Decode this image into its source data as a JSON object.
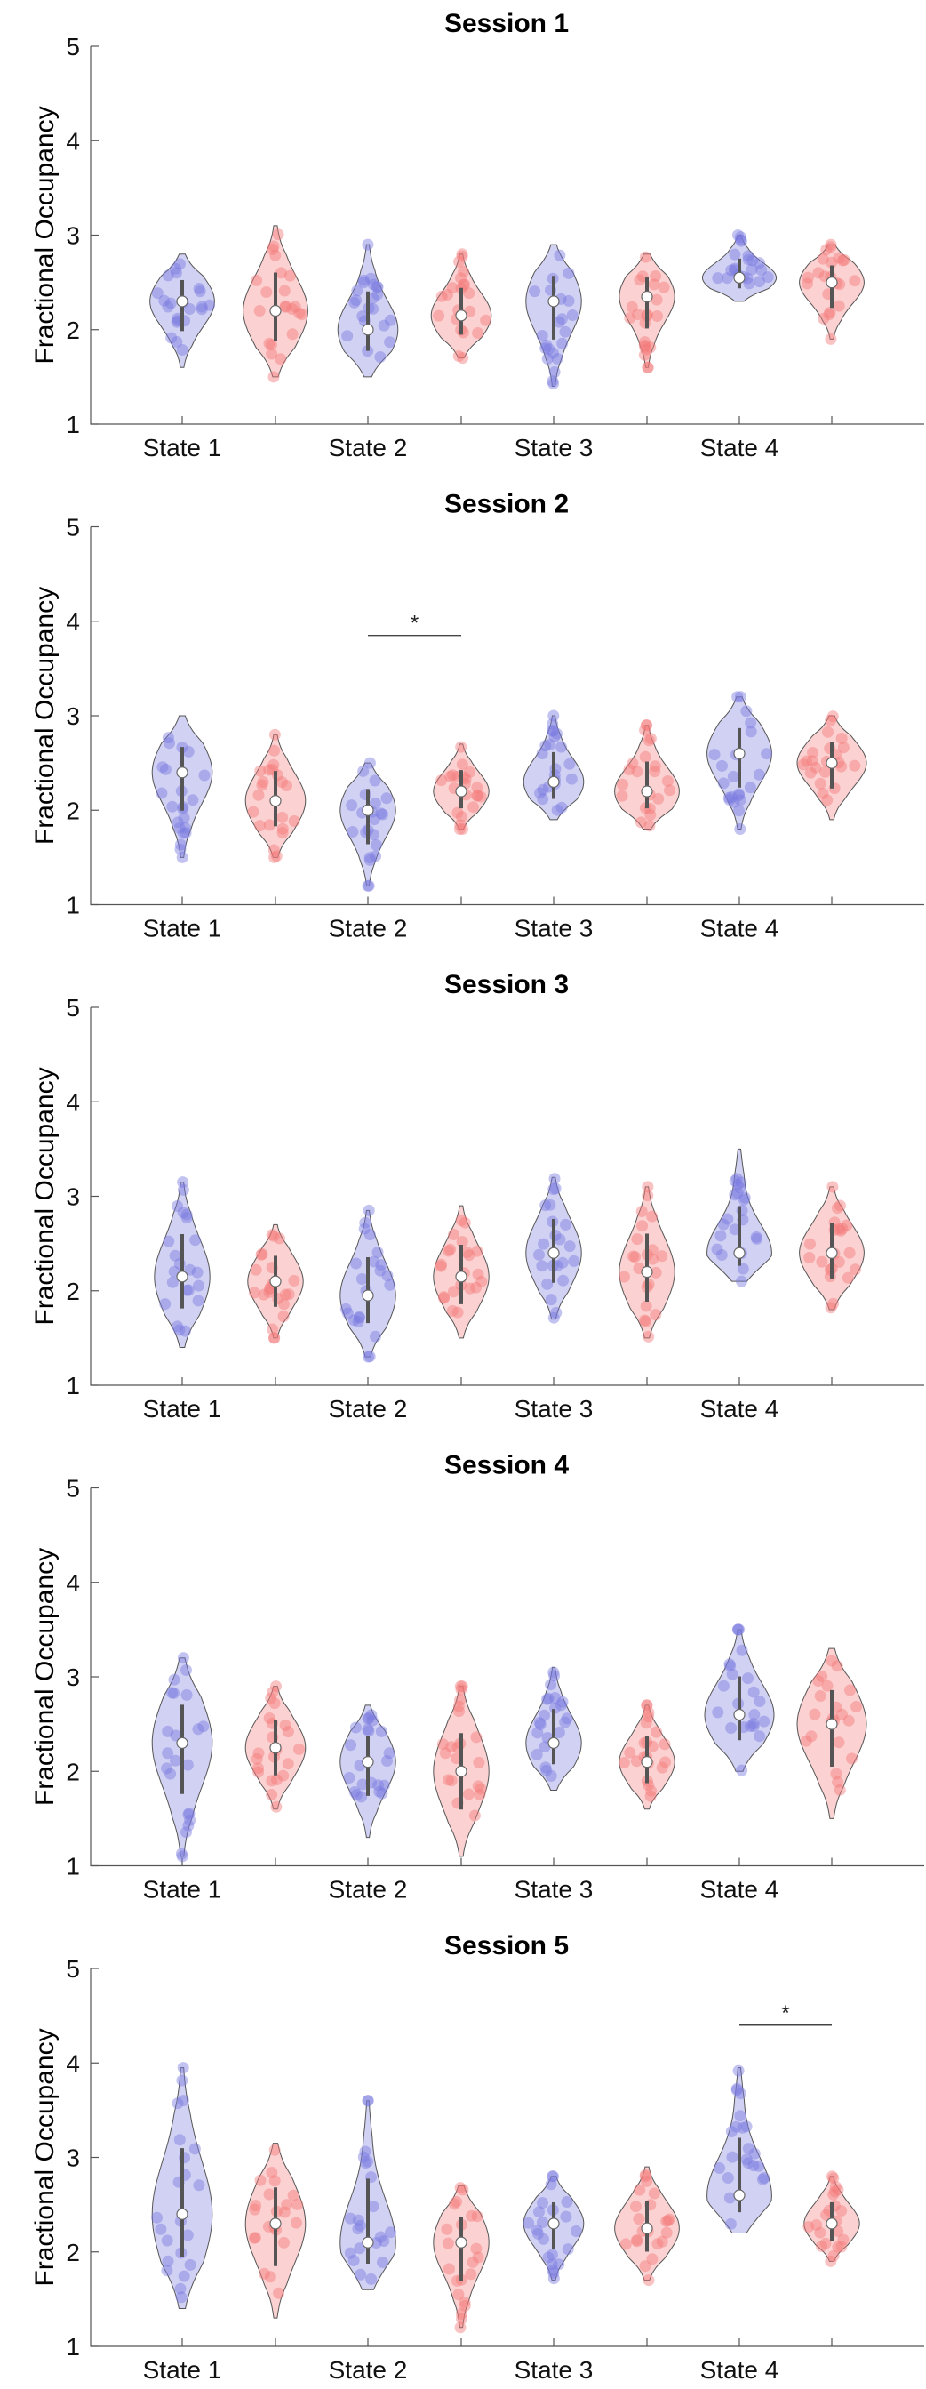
{
  "figure": {
    "ylabel": "Fractional Occupancy",
    "xtick_labels": [
      "State 1",
      "State 2",
      "State 3",
      "State 4"
    ],
    "ytick_labels": [
      "1",
      "2",
      "3",
      "4",
      "5"
    ],
    "colors": {
      "blue": "#7b7be0",
      "red": "#f47b7b",
      "edge": "#555555"
    },
    "significance_label": "*"
  },
  "chart_data": [
    {
      "type": "violin",
      "title": "Session 1",
      "ylabel": "Fractional Occupancy",
      "ylim": [
        1,
        5
      ],
      "categories": [
        "State 1",
        "State 2",
        "State 3",
        "State 4"
      ],
      "series": [
        {
          "name": "group-blue",
          "medians": [
            2.3,
            2.0,
            2.3,
            2.55
          ],
          "ranges": [
            [
              1.6,
              2.8
            ],
            [
              1.5,
              2.9
            ],
            [
              1.4,
              2.9
            ],
            [
              2.3,
              3.0
            ]
          ],
          "widths": [
            0.7,
            0.65,
            0.6,
            0.8
          ]
        },
        {
          "name": "group-red",
          "medians": [
            2.2,
            2.15,
            2.35,
            2.5
          ],
          "ranges": [
            [
              1.5,
              3.1
            ],
            [
              1.7,
              2.8
            ],
            [
              1.6,
              2.8
            ],
            [
              1.9,
              2.9
            ]
          ],
          "widths": [
            0.7,
            0.65,
            0.6,
            0.7
          ]
        }
      ],
      "significance": []
    },
    {
      "type": "violin",
      "title": "Session 2",
      "ylabel": "Fractional Occupancy",
      "ylim": [
        1,
        5
      ],
      "categories": [
        "State 1",
        "State 2",
        "State 3",
        "State 4"
      ],
      "series": [
        {
          "name": "group-blue",
          "medians": [
            2.4,
            2.0,
            2.3,
            2.6
          ],
          "ranges": [
            [
              1.5,
              3.0
            ],
            [
              1.2,
              2.5
            ],
            [
              1.9,
              3.0
            ],
            [
              1.8,
              3.2
            ]
          ],
          "widths": [
            0.65,
            0.6,
            0.65,
            0.7
          ]
        },
        {
          "name": "group-red",
          "medians": [
            2.1,
            2.2,
            2.2,
            2.5
          ],
          "ranges": [
            [
              1.5,
              2.8
            ],
            [
              1.8,
              2.7
            ],
            [
              1.8,
              2.9
            ],
            [
              1.9,
              3.0
            ]
          ],
          "widths": [
            0.65,
            0.6,
            0.7,
            0.75
          ]
        }
      ],
      "significance": [
        {
          "from": "State 2 blue",
          "to": "State 2 red",
          "y": 3.85,
          "label": "*"
        }
      ]
    },
    {
      "type": "violin",
      "title": "Session 3",
      "ylabel": "Fractional Occupancy",
      "ylim": [
        1,
        5
      ],
      "categories": [
        "State 1",
        "State 2",
        "State 3",
        "State 4"
      ],
      "series": [
        {
          "name": "group-blue",
          "medians": [
            2.15,
            1.95,
            2.4,
            2.4
          ],
          "ranges": [
            [
              1.4,
              3.15
            ],
            [
              1.3,
              2.85
            ],
            [
              1.7,
              3.2
            ],
            [
              2.1,
              3.5
            ]
          ],
          "widths": [
            0.6,
            0.6,
            0.6,
            0.7
          ]
        },
        {
          "name": "group-red",
          "medians": [
            2.1,
            2.15,
            2.2,
            2.4
          ],
          "ranges": [
            [
              1.5,
              2.7
            ],
            [
              1.5,
              2.9
            ],
            [
              1.5,
              3.1
            ],
            [
              1.8,
              3.1
            ]
          ],
          "widths": [
            0.6,
            0.6,
            0.6,
            0.7
          ]
        }
      ],
      "significance": []
    },
    {
      "type": "violin",
      "title": "Session 4",
      "ylabel": "Fractional Occupancy",
      "ylim": [
        1,
        5
      ],
      "categories": [
        "State 1",
        "State 2",
        "State 3",
        "State 4"
      ],
      "series": [
        {
          "name": "group-blue",
          "medians": [
            2.3,
            2.1,
            2.3,
            2.6
          ],
          "ranges": [
            [
              1.1,
              3.2
            ],
            [
              1.3,
              2.7
            ],
            [
              1.8,
              3.1
            ],
            [
              2.0,
              3.5
            ]
          ],
          "widths": [
            0.65,
            0.6,
            0.6,
            0.75
          ]
        },
        {
          "name": "group-red",
          "medians": [
            2.25,
            2.0,
            2.1,
            2.5
          ],
          "ranges": [
            [
              1.6,
              2.9
            ],
            [
              1.1,
              2.9
            ],
            [
              1.6,
              2.7
            ],
            [
              1.5,
              3.3
            ]
          ],
          "widths": [
            0.65,
            0.6,
            0.6,
            0.75
          ]
        }
      ],
      "significance": []
    },
    {
      "type": "violin",
      "title": "Session 5",
      "ylabel": "Fractional Occupancy",
      "ylim": [
        1,
        5
      ],
      "categories": [
        "State 1",
        "State 2",
        "State 3",
        "State 4"
      ],
      "series": [
        {
          "name": "group-blue",
          "medians": [
            2.4,
            2.1,
            2.3,
            2.6
          ],
          "ranges": [
            [
              1.4,
              3.95
            ],
            [
              1.6,
              3.6
            ],
            [
              1.7,
              2.8
            ],
            [
              2.2,
              3.95
            ]
          ],
          "widths": [
            0.65,
            0.6,
            0.65,
            0.7
          ]
        },
        {
          "name": "group-red",
          "medians": [
            2.3,
            2.1,
            2.25,
            2.3
          ],
          "ranges": [
            [
              1.3,
              3.15
            ],
            [
              1.2,
              2.7
            ],
            [
              1.7,
              2.9
            ],
            [
              1.9,
              2.8
            ]
          ],
          "widths": [
            0.65,
            0.6,
            0.7,
            0.6
          ]
        }
      ],
      "significance": [
        {
          "from": "State 4 blue",
          "to": "State 4 red",
          "y": 4.4,
          "label": "*"
        }
      ]
    }
  ]
}
